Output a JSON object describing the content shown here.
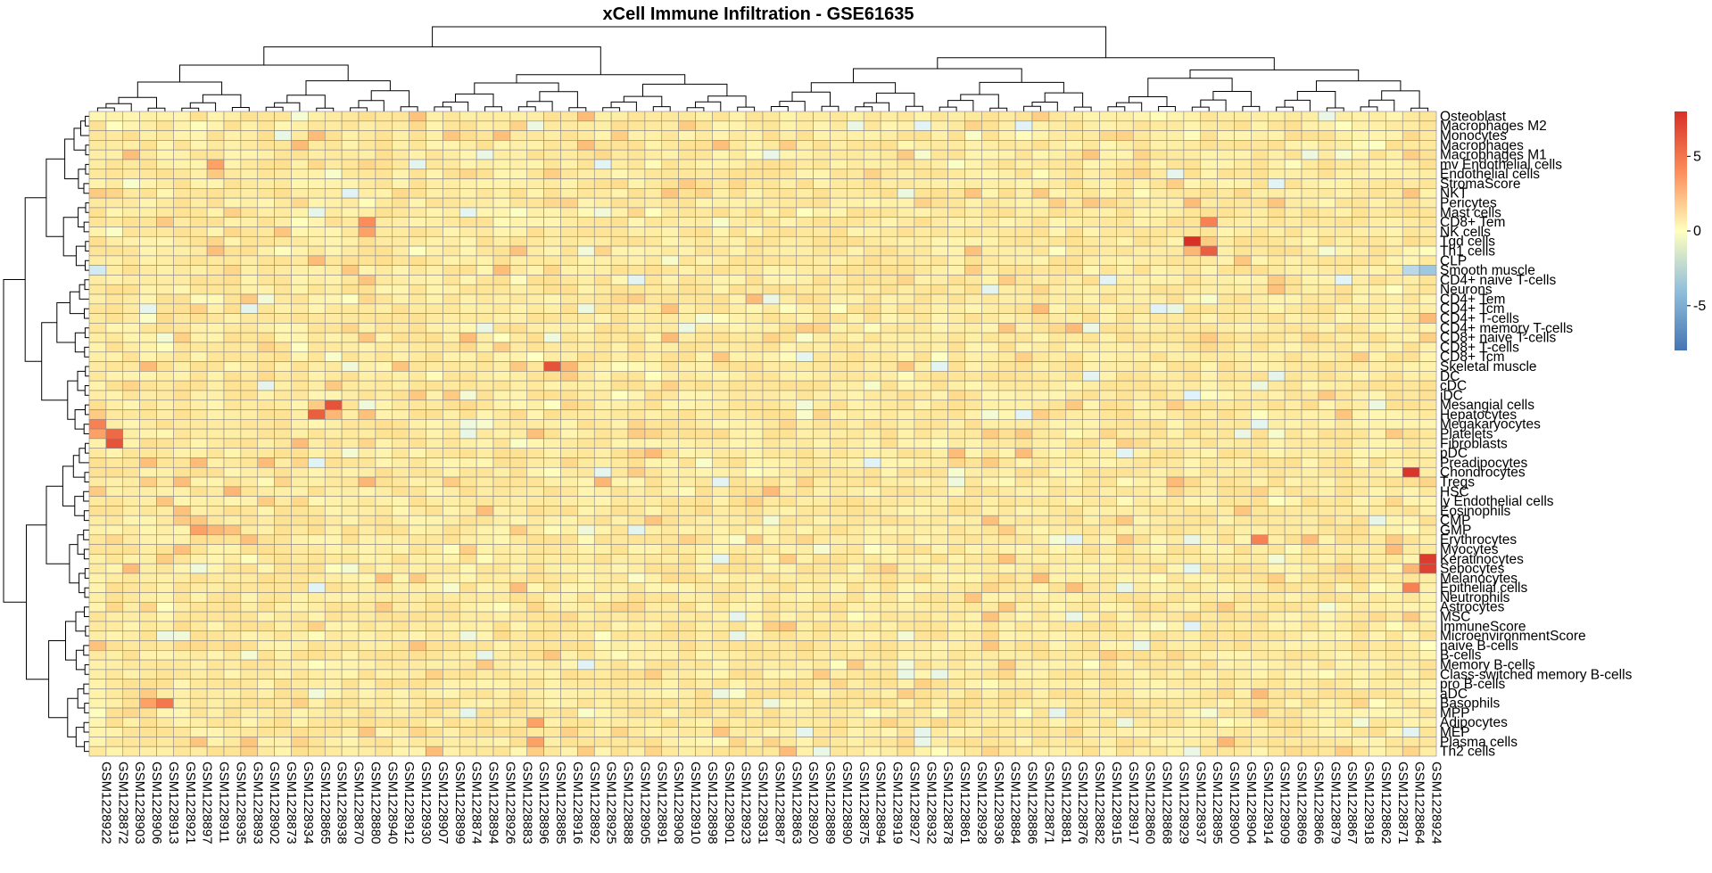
{
  "chart_data": {
    "type": "heatmap",
    "title": "xCell Immune Infiltration - GSE61635",
    "xlabel": "",
    "ylabel": "",
    "rows": [
      "Osteoblast",
      "Macrophages M2",
      "Monocytes",
      "Macrophages",
      "Macrophages M1",
      "mv Endothelial cells",
      "Endothelial cells",
      "StromaScore",
      "NKT",
      "Pericytes",
      "Mast cells",
      "CD8+ Tem",
      "NK cells",
      "Tgd cells",
      "Th1 cells",
      "CLP",
      "Smooth muscle",
      "CD4+ naive T-cells",
      "Neurons",
      "CD4+ Tem",
      "CD4+ Tcm",
      "CD4+ T-cells",
      "CD4+ memory T-cells",
      "CD8+ naive T-cells",
      "CD8+ T-cells",
      "CD8+ Tcm",
      "Skeletal muscle",
      "DC",
      "cDC",
      "iDC",
      "Mesangial cells",
      "Hepatocytes",
      "Megakaryocytes",
      "Platelets",
      "Fibroblasts",
      "pDC",
      "Preadipocytes",
      "Chondrocytes",
      "Tregs",
      "HSC",
      "ly Endothelial cells",
      "Eosinophils",
      "CMP",
      "GMP",
      "Erythrocytes",
      "Myocytes",
      "Keratinocytes",
      "Sebocytes",
      "Melanocytes",
      "Epithelial cells",
      "Neutrophils",
      "Astrocytes",
      "MSC",
      "ImmuneScore",
      "MicroenvironmentScore",
      "naive B-cells",
      "B-cells",
      "Memory B-cells",
      "Class-switched memory B-cells",
      "pro B-cells",
      "aDC",
      "Basophils",
      "MPP",
      "Adipocytes",
      "MEP",
      "Plasma cells",
      "Th2 cells"
    ],
    "columns": [
      "GSM1228922",
      "GSM1228872",
      "GSM1228903",
      "GSM1228906",
      "GSM1228913",
      "GSM1228921",
      "GSM1228897",
      "GSM1228911",
      "GSM1228935",
      "GSM1228893",
      "GSM1228902",
      "GSM1228873",
      "GSM1228934",
      "GSM1228865",
      "GSM1228938",
      "GSM1228870",
      "GSM1228880",
      "GSM1228940",
      "GSM1228912",
      "GSM1228930",
      "GSM1228907",
      "GSM1228899",
      "GSM1228874",
      "GSM1228894",
      "GSM1228926",
      "GSM1228883",
      "GSM1228896",
      "GSM1228885",
      "GSM1228916",
      "GSM1228892",
      "GSM1228925",
      "GSM1228888",
      "GSM1228905",
      "GSM1228891",
      "GSM1228908",
      "GSM1228910",
      "GSM1228898",
      "GSM1228901",
      "GSM1228923",
      "GSM1228931",
      "GSM1228887",
      "GSM1228863",
      "GSM1228920",
      "GSM1228889",
      "GSM1228890",
      "GSM1228875",
      "GSM1228894",
      "GSM1228919",
      "GSM1228927",
      "GSM1228932",
      "GSM1228878",
      "GSM1228861",
      "GSM1228928",
      "GSM1228936",
      "GSM1228884",
      "GSM1228886",
      "GSM1228871",
      "GSM1228881",
      "GSM1228876",
      "GSM1228882",
      "GSM1228915",
      "GSM1228917",
      "GSM1228860",
      "GSM1228868",
      "GSM1228929",
      "GSM1228937",
      "GSM1228895",
      "GSM1228900",
      "GSM1228904",
      "GSM1228914",
      "GSM1228909",
      "GSM1228869",
      "GSM1228866",
      "GSM1228879",
      "GSM1228867",
      "GSM1228918",
      "GSM1228862",
      "GSM1228871",
      "GSM1228864",
      "GSM1228924"
    ],
    "color_scale": {
      "low": "#4575B4",
      "mid": "#FFFFBF",
      "high": "#D73027",
      "domain": [
        -8,
        8
      ]
    },
    "legend_ticks": [
      5,
      0,
      -5
    ],
    "legend_placement": "right",
    "grid": true,
    "cell_border_color": "#888888",
    "background_value": 1.3,
    "hotspots": [
      {
        "row": "Tgd cells",
        "col": "GSM1228937",
        "value": 8.0
      },
      {
        "row": "Th1 cells",
        "col": "GSM1228895",
        "value": 6.0
      },
      {
        "row": "Tgd cells",
        "col": "GSM1228895",
        "value": 2.5
      },
      {
        "row": "CD8+ Tem",
        "col": "GSM1228895",
        "value": 4.5
      },
      {
        "row": "Mast cells",
        "col": "GSM1228895",
        "value": 1.8
      },
      {
        "row": "Th1 cells",
        "col": "GSM1228937",
        "value": 3.0
      },
      {
        "row": "Chondrocytes",
        "col": "GSM1228864",
        "value": 7.8
      },
      {
        "row": "Keratinocytes",
        "col": "GSM1228924",
        "value": 7.5
      },
      {
        "row": "Sebocytes",
        "col": "GSM1228924",
        "value": 7.2
      },
      {
        "row": "Sebocytes",
        "col": "GSM1228864",
        "value": 3.0
      },
      {
        "row": "Epithelial cells",
        "col": "GSM1228864",
        "value": 4.5
      },
      {
        "row": "Skeletal muscle",
        "col": "GSM1228885",
        "value": 6.5
      },
      {
        "row": "Skeletal muscle",
        "col": "GSM1228916",
        "value": 3.0
      },
      {
        "row": "DC",
        "col": "GSM1228916",
        "value": 2.5
      },
      {
        "row": "DC",
        "col": "GSM1228885",
        "value": 2.0
      },
      {
        "row": "Mesangial cells",
        "col": "GSM1228938",
        "value": 6.5
      },
      {
        "row": "Hepatocytes",
        "col": "GSM1228865",
        "value": 6.0
      },
      {
        "row": "Hepatocytes",
        "col": "GSM1228938",
        "value": 3.0
      },
      {
        "row": "Mesangial cells",
        "col": "GSM1228865",
        "value": 2.5
      },
      {
        "row": "Fibroblasts",
        "col": "GSM1228872",
        "value": 6.5
      },
      {
        "row": "Platelets",
        "col": "GSM1228872",
        "value": 5.5
      },
      {
        "row": "Megakaryocytes",
        "col": "GSM1228922",
        "value": 4.5
      },
      {
        "row": "Platelets",
        "col": "GSM1228922",
        "value": 3.5
      },
      {
        "row": "Hepatocytes",
        "col": "GSM1228922",
        "value": 2.5
      },
      {
        "row": "Basophils",
        "col": "GSM1228913",
        "value": 5.0
      },
      {
        "row": "Basophils",
        "col": "GSM1228906",
        "value": 3.5
      },
      {
        "row": "aDC",
        "col": "GSM1228906",
        "value": 2.5
      },
      {
        "row": "CD8+ Tem",
        "col": "GSM1228880",
        "value": 4.0
      },
      {
        "row": "NK cells",
        "col": "GSM1228880",
        "value": 3.5
      },
      {
        "row": "Erythrocytes",
        "col": "GSM1228914",
        "value": 4.5
      },
      {
        "row": "Erythrocytes",
        "col": "GSM1228931",
        "value": 2.5
      },
      {
        "row": "GMP",
        "col": "GSM1228897",
        "value": 3.5
      },
      {
        "row": "GMP",
        "col": "GSM1228911",
        "value": 3.0
      },
      {
        "row": "CMP",
        "col": "GSM1228921",
        "value": 2.5
      },
      {
        "row": "HSC",
        "col": "GSM1228935",
        "value": 3.0
      },
      {
        "row": "HSC",
        "col": "GSM1228922",
        "value": 2.5
      },
      {
        "row": "mv Endothelial cells",
        "col": "GSM1228911",
        "value": 3.5
      },
      {
        "row": "NKT",
        "col": "GSM1228922",
        "value": 2.5
      },
      {
        "row": "StromaScore",
        "col": "GSM1228910",
        "value": 2.5
      },
      {
        "row": "Macrophages M2",
        "col": "GSM1228910",
        "value": 2.5
      },
      {
        "row": "Adipocytes",
        "col": "GSM1228896",
        "value": 3.5
      },
      {
        "row": "Plasma cells",
        "col": "GSM1228896",
        "value": 3.5
      },
      {
        "row": "Plasma cells",
        "col": "GSM1228900",
        "value": 3.0
      },
      {
        "row": "Tregs",
        "col": "GSM1228880",
        "value": 3.0
      },
      {
        "row": "Tregs",
        "col": "GSM1228925",
        "value": 3.0
      },
      {
        "row": "CD4+ naive T-cells",
        "col": "GSM1228909",
        "value": 2.5
      },
      {
        "row": "Neurons",
        "col": "GSM1228916",
        "value": 2.0
      },
      {
        "row": "CD4+ Tem",
        "col": "GSM1228888",
        "value": 2.2
      },
      {
        "row": "CD8+ naive T-cells",
        "col": "GSM1228895",
        "value": 2.5
      },
      {
        "row": "CD8+ naive T-cells",
        "col": "GSM1228866",
        "value": 2.2
      },
      {
        "row": "CD8+ T-cells",
        "col": "GSM1228895",
        "value": 2.2
      },
      {
        "row": "Smooth muscle",
        "col": "GSM1228924",
        "value": -3.5
      },
      {
        "row": "Smooth muscle",
        "col": "GSM1228864",
        "value": -2.5
      },
      {
        "row": "Smooth muscle",
        "col": "GSM1228922",
        "value": -1.5
      },
      {
        "row": "Astrocytes",
        "col": "GSM1228900",
        "value": 2.5
      },
      {
        "row": "Astrocytes",
        "col": "GSM1228905",
        "value": 2.2
      },
      {
        "row": "MSC",
        "col": "GSM1228914",
        "value": 2.0
      },
      {
        "row": "iDC",
        "col": "GSM1228899",
        "value": 2.5
      },
      {
        "row": "Pericytes",
        "col": "GSM1228934",
        "value": 2.2
      },
      {
        "row": "Neutrophils",
        "col": "GSM1228905",
        "value": 2.0
      },
      {
        "row": "Preadipocytes",
        "col": "GSM1228916",
        "value": 2.2
      }
    ]
  }
}
